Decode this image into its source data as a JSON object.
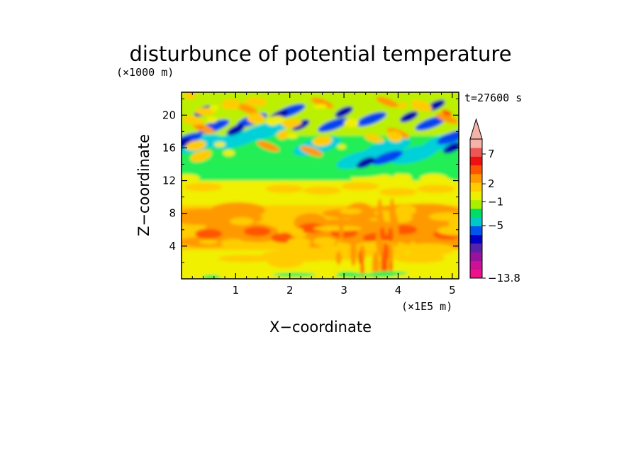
{
  "chart_data": {
    "type": "heatmap",
    "title": "disturbunce of potential temperature",
    "xlabel": "X−coordinate",
    "ylabel": "Z−coordinate",
    "x_units": "(×1E5 m)",
    "y_units": "(×1000 m)",
    "time_label": "t=27600 s",
    "xlim": [
      0,
      5.12
    ],
    "ylim": [
      0,
      22.8
    ],
    "x_ticks": [
      1,
      2,
      3,
      4,
      5
    ],
    "y_ticks": [
      4,
      8,
      12,
      16,
      20
    ],
    "colorbar": {
      "labels": [
        "7",
        "2",
        "−1",
        "−5",
        "−13.8"
      ],
      "label_levels": [
        7,
        2,
        -1,
        -5,
        -13.8
      ],
      "colors": [
        "#ee1289",
        "#cc1199",
        "#99119f",
        "#5522aa",
        "#0000c8",
        "#0055ee",
        "#00c8c8",
        "#00dd66",
        "#aaee00",
        "#eeee00",
        "#ffcc00",
        "#ff9900",
        "#ff5500",
        "#ee1111",
        "#ee5555",
        "#f4b2a8"
      ],
      "extend": "max"
    }
  },
  "field": {
    "colors": {
      "magenta": "#ee1289",
      "darkblue": "#0000a8",
      "blue": "#0044ee",
      "cyan": "#00d0d8",
      "green": "#22ee55",
      "lime": "#bbf000",
      "yellow": "#f0f000",
      "lightorange": "#ffcc00",
      "orange": "#ff9900",
      "redorange": "#ff5500"
    }
  }
}
